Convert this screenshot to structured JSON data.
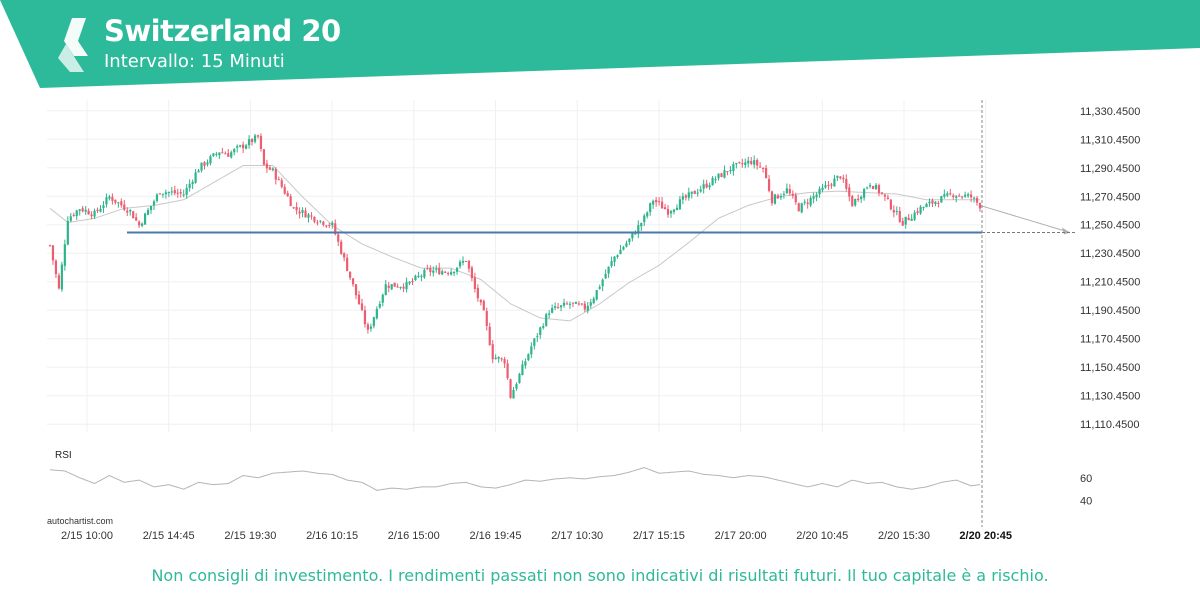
{
  "header": {
    "title": "Switzerland 20",
    "subtitle": "Intervallo: 15 Minuti",
    "color": "#2dba9b"
  },
  "watermark": "autochartist.com",
  "disclaimer": "Non consigli di investimento. I rendimenti passati non sono indicativi di risultati futuri. Il tuo capitale è a rischio.",
  "chart_data": {
    "type": "candlestick",
    "title": "Switzerland 20",
    "interval": "15 Minuti",
    "ylim": [
      11105,
      11338
    ],
    "y_ticks": [
      "11,330.4500",
      "11,310.4500",
      "11,290.4500",
      "11,270.4500",
      "11,250.4500",
      "11,230.4500",
      "11,210.4500",
      "11,190.4500",
      "11,170.4500",
      "11,150.4500",
      "11,130.4500",
      "11,110.4500"
    ],
    "x_ticks": [
      "2/15 10:00",
      "2/15 14:45",
      "2/15 19:30",
      "2/16 10:15",
      "2/16 15:00",
      "2/16 19:45",
      "2/17 10:30",
      "2/17 15:15",
      "2/17 20:00",
      "2/20 10:45",
      "2/20 15:30",
      "2/20 20:45"
    ],
    "current_time_label": "2/20 20:45",
    "support_level": 11245,
    "up_color": "#2db48c",
    "down_color": "#ee5c70",
    "price_path": [
      [
        0,
        11236
      ],
      [
        3,
        11205
      ],
      [
        6,
        11255
      ],
      [
        10,
        11262
      ],
      [
        15,
        11258
      ],
      [
        20,
        11270
      ],
      [
        27,
        11260
      ],
      [
        30,
        11250
      ],
      [
        37,
        11274
      ],
      [
        45,
        11272
      ],
      [
        50,
        11290
      ],
      [
        57,
        11302
      ],
      [
        60,
        11300
      ],
      [
        70,
        11312
      ],
      [
        72,
        11292
      ],
      [
        75,
        11288
      ],
      [
        80,
        11270
      ],
      [
        82,
        11262
      ],
      [
        90,
        11254
      ],
      [
        95,
        11250
      ],
      [
        100,
        11220
      ],
      [
        104,
        11195
      ],
      [
        107,
        11175
      ],
      [
        110,
        11192
      ],
      [
        113,
        11208
      ],
      [
        120,
        11208
      ],
      [
        127,
        11218
      ],
      [
        135,
        11218
      ],
      [
        140,
        11226
      ],
      [
        143,
        11205
      ],
      [
        146,
        11188
      ],
      [
        149,
        11158
      ],
      [
        153,
        11155
      ],
      [
        155,
        11130
      ],
      [
        158,
        11145
      ],
      [
        162,
        11165
      ],
      [
        168,
        11190
      ],
      [
        175,
        11195
      ],
      [
        180,
        11192
      ],
      [
        183,
        11200
      ],
      [
        190,
        11228
      ],
      [
        195,
        11240
      ],
      [
        200,
        11255
      ],
      [
        203,
        11268
      ],
      [
        208,
        11260
      ],
      [
        213,
        11268
      ],
      [
        222,
        11280
      ],
      [
        229,
        11290
      ],
      [
        236,
        11295
      ],
      [
        240,
        11290
      ],
      [
        243,
        11268
      ],
      [
        248,
        11275
      ],
      [
        252,
        11262
      ],
      [
        260,
        11275
      ],
      [
        266,
        11285
      ],
      [
        270,
        11265
      ],
      [
        276,
        11280
      ],
      [
        280,
        11272
      ],
      [
        287,
        11252
      ],
      [
        293,
        11262
      ],
      [
        298,
        11267
      ],
      [
        304,
        11272
      ],
      [
        310,
        11270
      ],
      [
        313,
        11264
      ]
    ],
    "ma_path": [
      [
        0,
        11262
      ],
      [
        6,
        11252
      ],
      [
        15,
        11255
      ],
      [
        25,
        11262
      ],
      [
        35,
        11264
      ],
      [
        45,
        11268
      ],
      [
        55,
        11280
      ],
      [
        65,
        11292
      ],
      [
        75,
        11292
      ],
      [
        85,
        11270
      ],
      [
        95,
        11250
      ],
      [
        105,
        11237
      ],
      [
        115,
        11228
      ],
      [
        125,
        11220
      ],
      [
        135,
        11220
      ],
      [
        145,
        11212
      ],
      [
        155,
        11195
      ],
      [
        165,
        11185
      ],
      [
        175,
        11183
      ],
      [
        185,
        11195
      ],
      [
        195,
        11210
      ],
      [
        205,
        11222
      ],
      [
        215,
        11238
      ],
      [
        225,
        11255
      ],
      [
        235,
        11264
      ],
      [
        245,
        11270
      ],
      [
        255,
        11273
      ],
      [
        265,
        11274
      ],
      [
        275,
        11273
      ],
      [
        285,
        11272
      ],
      [
        295,
        11268
      ],
      [
        305,
        11268
      ],
      [
        313,
        11268
      ]
    ],
    "rsi": {
      "label": "RSI",
      "ticks": [
        60,
        40
      ],
      "ylim": [
        30,
        80
      ],
      "path": [
        [
          0,
          67
        ],
        [
          5,
          66
        ],
        [
          10,
          60
        ],
        [
          15,
          55
        ],
        [
          20,
          62
        ],
        [
          25,
          56
        ],
        [
          30,
          58
        ],
        [
          35,
          52
        ],
        [
          40,
          54
        ],
        [
          45,
          50
        ],
        [
          50,
          56
        ],
        [
          55,
          54
        ],
        [
          60,
          55
        ],
        [
          65,
          62
        ],
        [
          70,
          60
        ],
        [
          75,
          64
        ],
        [
          80,
          65
        ],
        [
          85,
          66
        ],
        [
          90,
          64
        ],
        [
          95,
          63
        ],
        [
          100,
          58
        ],
        [
          105,
          56
        ],
        [
          110,
          49
        ],
        [
          115,
          51
        ],
        [
          120,
          50
        ],
        [
          125,
          52
        ],
        [
          130,
          52
        ],
        [
          135,
          55
        ],
        [
          140,
          56
        ],
        [
          145,
          52
        ],
        [
          150,
          51
        ],
        [
          155,
          54
        ],
        [
          160,
          58
        ],
        [
          165,
          57
        ],
        [
          170,
          59
        ],
        [
          175,
          60
        ],
        [
          180,
          59
        ],
        [
          185,
          61
        ],
        [
          190,
          62
        ],
        [
          195,
          65
        ],
        [
          200,
          69
        ],
        [
          205,
          64
        ],
        [
          210,
          65
        ],
        [
          215,
          66
        ],
        [
          220,
          63
        ],
        [
          225,
          62
        ],
        [
          230,
          60
        ],
        [
          235,
          62
        ],
        [
          240,
          61
        ],
        [
          245,
          58
        ],
        [
          250,
          55
        ],
        [
          255,
          52
        ],
        [
          260,
          55
        ],
        [
          265,
          52
        ],
        [
          270,
          58
        ],
        [
          275,
          55
        ],
        [
          280,
          56
        ],
        [
          285,
          52
        ],
        [
          290,
          50
        ],
        [
          295,
          52
        ],
        [
          300,
          56
        ],
        [
          305,
          58
        ],
        [
          310,
          53
        ],
        [
          313,
          54
        ]
      ]
    }
  }
}
